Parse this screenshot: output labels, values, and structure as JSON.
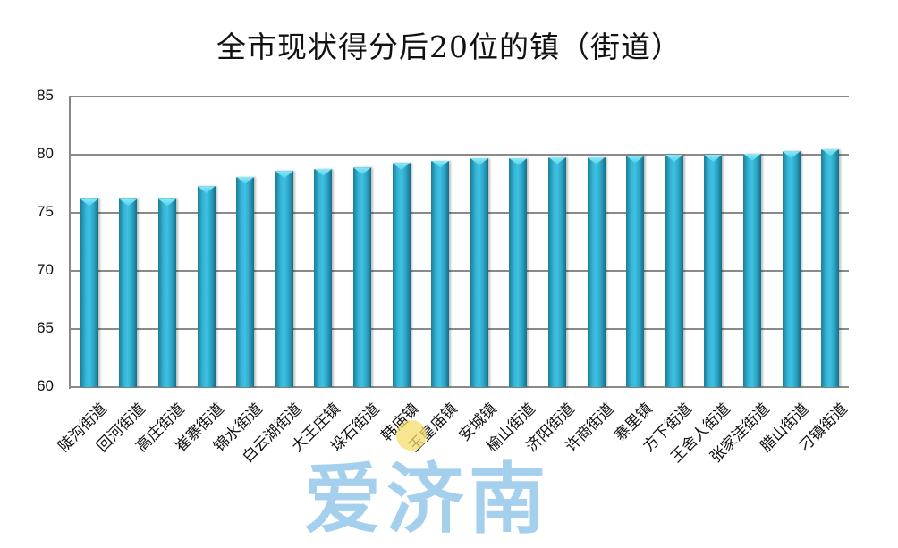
{
  "chart_data": {
    "type": "bar",
    "title": "全市现状得分后20位的镇（街道）",
    "xlabel": "",
    "ylabel": "",
    "ylim": [
      60,
      85
    ],
    "yticks": [
      85,
      80,
      75,
      70,
      65,
      60
    ],
    "grid": true,
    "legend": "none",
    "categories": [
      "陡沟街道",
      "回河街道",
      "高庄街道",
      "崔寨街道",
      "锦水街道",
      "白云湖街道",
      "大王庄镇",
      "垛石街道",
      "韩庙镇",
      "玉皇庙镇",
      "安城镇",
      "榆山街道",
      "济阳街道",
      "许商街道",
      "寨里镇",
      "方下街道",
      "王舍人街道",
      "张家洼街道",
      "腊山街道",
      "刁镇街道"
    ],
    "values": [
      76.2,
      76.2,
      76.2,
      77.3,
      78.1,
      78.6,
      78.8,
      78.9,
      79.3,
      79.5,
      79.7,
      79.7,
      79.8,
      79.8,
      79.9,
      80.0,
      80.0,
      80.1,
      80.3,
      80.5
    ],
    "bar_color": "#2fa9cc"
  },
  "watermark": {
    "text": "爱济南",
    "color": "#9ccbec"
  }
}
